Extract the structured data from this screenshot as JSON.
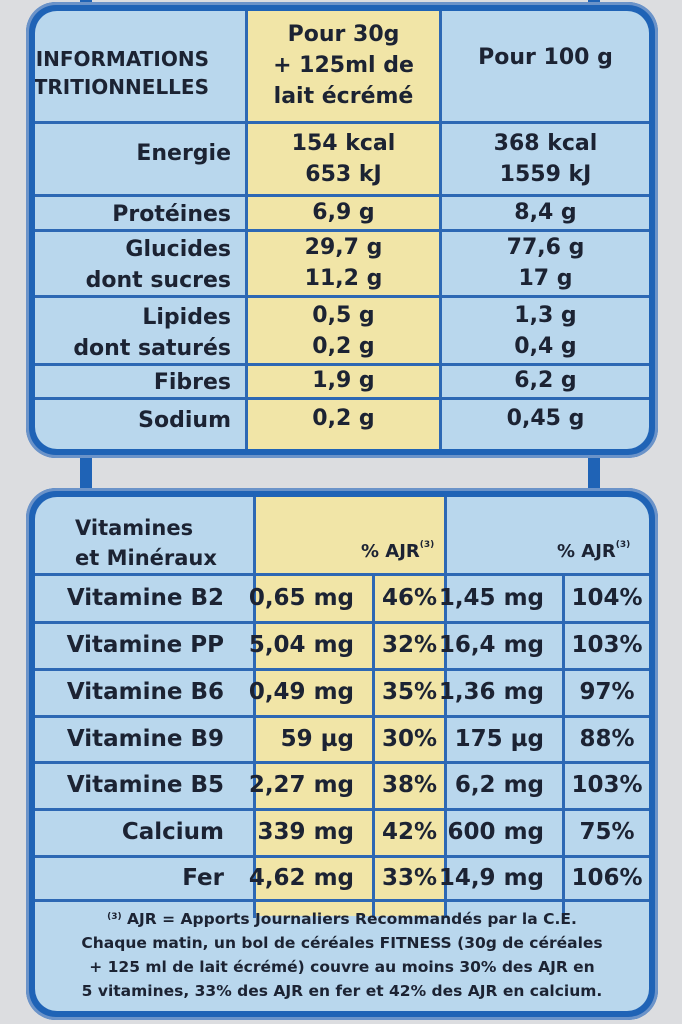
{
  "nutrition": {
    "header": {
      "label_line1": "INFORMATIONS",
      "label_line2": "NUTRITIONNELLES",
      "col1_line1": "Pour 30g",
      "col1_line2": "+ 125ml de",
      "col1_line3": "lait écrémé",
      "col2": "Pour 100 g"
    },
    "rows": [
      {
        "label": "Energie",
        "v1a": "154 kcal",
        "v1b": "653 kJ",
        "v2a": "368 kcal",
        "v2b": "1559 kJ"
      },
      {
        "label": "Protéines",
        "v1": "6,9 g",
        "v2": "8,4 g"
      },
      {
        "label": "Glucides",
        "sub": "dont sucres",
        "v1a": "29,7 g",
        "v1b": "11,2 g",
        "v2a": "77,6 g",
        "v2b": "17 g"
      },
      {
        "label": "Lipides",
        "sub": "dont saturés",
        "v1a": "0,5 g",
        "v1b": "0,2 g",
        "v2a": "1,3 g",
        "v2b": "0,4 g"
      },
      {
        "label": "Fibres",
        "v1": "1,9 g",
        "v2": "6,2 g"
      },
      {
        "label": "Sodium",
        "v1": "0,2 g",
        "v2": "0,45 g"
      }
    ]
  },
  "vitamins": {
    "header": {
      "label_line1": "Vitamines",
      "label_line2": "et Minéraux",
      "ajr": "% AJR",
      "ajr_sup": "(3)"
    },
    "rows": [
      {
        "name": "Vitamine B2",
        "q1": "0,65 mg",
        "p1": "46%",
        "q2": "1,45 mg",
        "p2": "104%"
      },
      {
        "name": "Vitamine PP",
        "q1": "5,04 mg",
        "p1": "32%",
        "q2": "16,4 mg",
        "p2": "103%"
      },
      {
        "name": "Vitamine B6",
        "q1": "0,49 mg",
        "p1": "35%",
        "q2": "1,36 mg",
        "p2": "97%"
      },
      {
        "name": "Vitamine B9",
        "q1": "59 µg",
        "p1": "30%",
        "q2": "175 µg",
        "p2": "88%"
      },
      {
        "name": "Vitamine B5",
        "q1": "2,27 mg",
        "p1": "38%",
        "q2": "6,2 mg",
        "p2": "103%"
      },
      {
        "name": "Calcium",
        "q1": "339 mg",
        "p1": "42%",
        "q2": "600 mg",
        "p2": "75%"
      },
      {
        "name": "Fer",
        "q1": "4,62 mg",
        "p1": "33%",
        "q2": "14,9 mg",
        "p2": "106%"
      }
    ],
    "footnote": {
      "sup": "(3)",
      "line1": "AJR = Apports Journaliers Recommandés par la C.E.",
      "line2": "Chaque matin, un bol de céréales FITNESS (30g de céréales",
      "line3": "+ 125 ml de lait écrémé) couvre au moins 30% des AJR en",
      "line4": "5 vitamines, 33% des AJR en fer et 42% des AJR en calcium."
    }
  }
}
